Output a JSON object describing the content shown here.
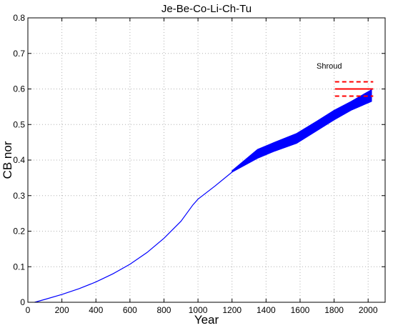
{
  "chart_data": {
    "type": "line",
    "title": "Je-Be-Co-Li-Ch-Tu",
    "xlabel": "Year",
    "ylabel": "CB nor",
    "xlim": [
      0,
      2100
    ],
    "ylim": [
      0,
      0.8
    ],
    "xticks": [
      0,
      200,
      400,
      600,
      800,
      1000,
      1200,
      1400,
      1600,
      1800,
      2000
    ],
    "yticks": [
      0,
      0.1,
      0.2,
      0.3,
      0.4,
      0.5,
      0.6,
      0.7,
      0.8
    ],
    "xtick_labels": [
      "0",
      "200",
      "400",
      "600",
      "800",
      "1000",
      "1200",
      "1400",
      "1600",
      "1800",
      "2000"
    ],
    "ytick_labels": [
      "0",
      "0.1",
      "0.2",
      "0.3",
      "0.4",
      "0.5",
      "0.6",
      "0.7",
      "0.8"
    ],
    "grid": true,
    "colors": {
      "series": "#0000ff",
      "reference": "#ff0000",
      "grid": "#b0b0b0"
    },
    "series": [
      {
        "x": [
          40,
          100,
          200,
          300,
          400,
          500,
          600,
          700,
          800,
          900,
          970,
          1000,
          1100,
          1200
        ],
        "y": [
          0.0,
          0.008,
          0.022,
          0.038,
          0.057,
          0.08,
          0.107,
          0.14,
          0.18,
          0.228,
          0.274,
          0.29,
          0.327,
          0.366
        ]
      }
    ],
    "band": {
      "x": [
        1200,
        1350,
        1450,
        1580,
        1700,
        1800,
        1900,
        2020
      ],
      "upper": [
        0.37,
        0.43,
        0.45,
        0.475,
        0.51,
        0.54,
        0.565,
        0.598
      ],
      "lower": [
        0.366,
        0.405,
        0.425,
        0.447,
        0.483,
        0.513,
        0.54,
        0.565
      ]
    },
    "reference": {
      "label": "Shroud",
      "x_range": [
        1805,
        2030
      ],
      "value": 0.6,
      "upper": 0.62,
      "lower": 0.58
    }
  }
}
